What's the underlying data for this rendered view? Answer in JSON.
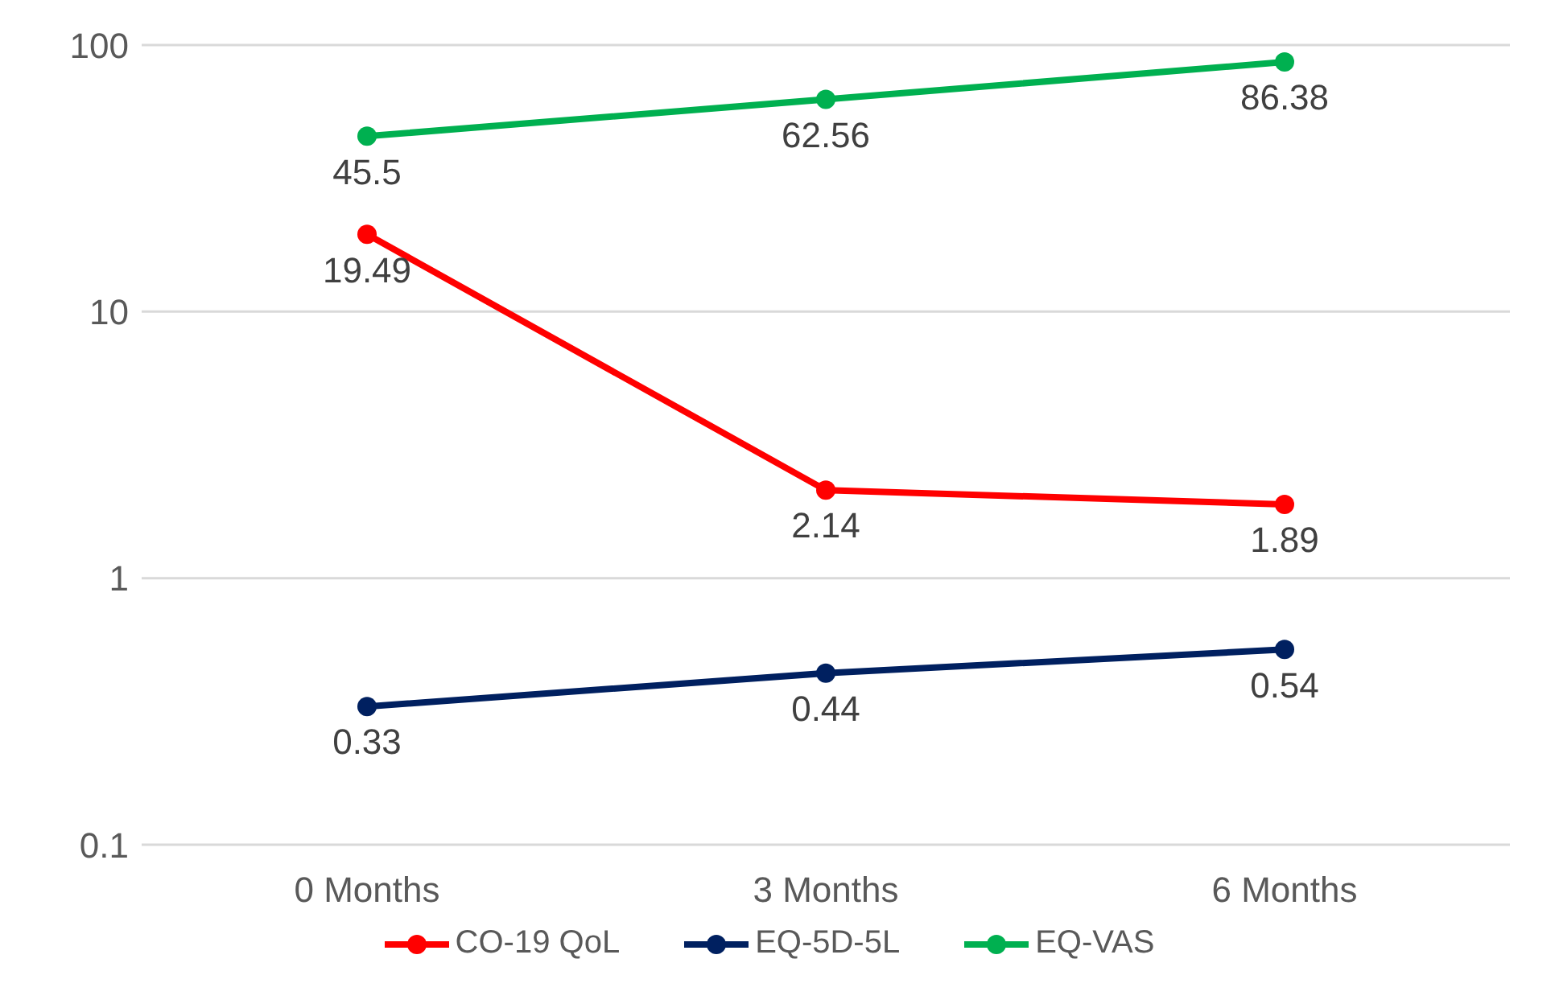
{
  "chart_data": {
    "type": "line",
    "categories": [
      "0 Months",
      "3 Months",
      "6 Months"
    ],
    "series": [
      {
        "name": "CO-19  QoL",
        "color": "#ff0000",
        "values": [
          19.49,
          2.14,
          1.89
        ]
      },
      {
        "name": "EQ-5D-5L",
        "color": "#002060",
        "values": [
          0.33,
          0.44,
          0.54
        ]
      },
      {
        "name": "EQ-VAS",
        "color": "#00b050",
        "values": [
          45.5,
          62.56,
          86.38
        ]
      }
    ],
    "log": true,
    "ylim": [
      0.1,
      100
    ],
    "yticks": [
      0.1,
      1,
      10,
      100
    ],
    "grid": "y",
    "legend": "bottom",
    "marker": "circle",
    "line_style": "solid",
    "data_labels": true
  }
}
